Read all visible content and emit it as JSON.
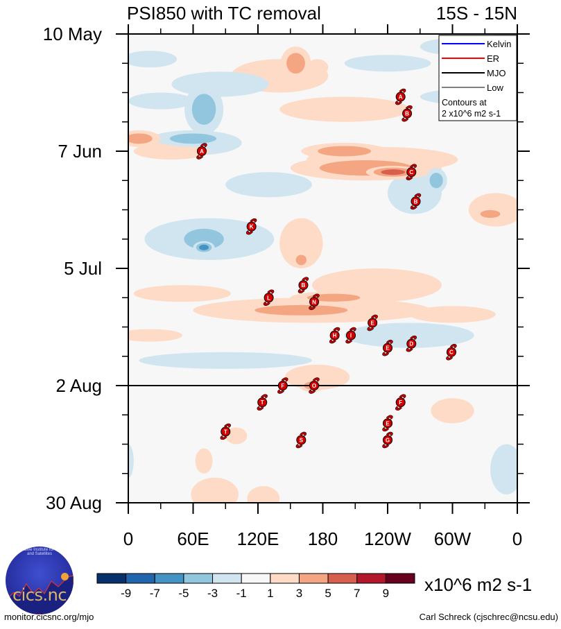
{
  "chart_data": {
    "type": "heatmap",
    "title": "PSI850 with TC removal",
    "subtitle": "15S - 15N",
    "xlabel": "",
    "ylabel": "",
    "x_axis": {
      "range_deg_east": [
        0,
        360
      ],
      "tick_values": [
        0,
        60,
        120,
        180,
        240,
        300,
        360
      ],
      "tick_labels": [
        "0",
        "60E",
        "120E",
        "180",
        "120W",
        "60W",
        "0"
      ],
      "minor_tick_values": [
        30,
        90,
        150,
        210,
        270,
        330
      ]
    },
    "y_axis": {
      "range_days_from_10May": [
        0,
        112
      ],
      "tick_values": [
        0,
        28,
        56,
        84,
        112
      ],
      "tick_labels": [
        "10 May",
        "7 Jun",
        "5 Jul",
        "2 Aug",
        "30 Aug"
      ],
      "minor_tick_interval_days": 7,
      "direction": "time increases downward"
    },
    "current_date_line": {
      "label": "2 Aug",
      "day": 84
    },
    "colorbar": {
      "levels": [
        -9,
        -7,
        -5,
        -3,
        -1,
        1,
        3,
        5,
        7,
        9
      ],
      "colors": [
        "#08306b",
        "#2166ac",
        "#4393c3",
        "#92c5de",
        "#d1e5f0",
        "#f7f7f7",
        "#fddbc7",
        "#f4a582",
        "#d6604d",
        "#b2182b",
        "#67001f"
      ],
      "units": "x10^6 m2 s-1"
    },
    "legend": {
      "position": "top-right",
      "entries": [
        {
          "label": "Kelvin",
          "color": "#0000ff"
        },
        {
          "label": "ER",
          "color": "#ff0000"
        },
        {
          "label": "MJO",
          "color": "#000000"
        },
        {
          "label": "Low",
          "color": "#808080"
        }
      ],
      "note_line1": "Contours at",
      "note_line2": "2 x10^6 m2 s-1"
    },
    "anomaly_features": [
      {
        "lon": 155,
        "day": 7,
        "lon_half": 14,
        "day_half": 4,
        "level": 2
      },
      {
        "lon": 140,
        "day": 10,
        "lon_half": 45,
        "day_half": 4,
        "level": 1
      },
      {
        "lon": 175,
        "day": 8,
        "lon_half": 10,
        "day_half": 2,
        "level": 1
      },
      {
        "lon": 240,
        "day": 7,
        "lon_half": 40,
        "day_half": 2,
        "level": -1
      },
      {
        "lon": 300,
        "day": 3,
        "lon_half": 30,
        "day_half": 2,
        "level": -1
      },
      {
        "lon": 350,
        "day": 3,
        "lon_half": 30,
        "day_half": 3,
        "level": -2
      },
      {
        "lon": 20,
        "day": 6,
        "lon_half": 25,
        "day_half": 2,
        "level": -1
      },
      {
        "lon": 85,
        "day": 12,
        "lon_half": 45,
        "day_half": 3,
        "level": -1
      },
      {
        "lon": 30,
        "day": 16,
        "lon_half": 30,
        "day_half": 2,
        "level": -1
      },
      {
        "lon": 70,
        "day": 18,
        "lon_half": 18,
        "day_half": 6,
        "level": -2
      },
      {
        "lon": 60,
        "day": 25,
        "lon_half": 35,
        "day_half": 2,
        "level": -2
      },
      {
        "lon": 60,
        "day": 26,
        "lon_half": 45,
        "day_half": 3,
        "level": -1
      },
      {
        "lon": 200,
        "day": 18,
        "lon_half": 60,
        "day_half": 3,
        "level": 1
      },
      {
        "lon": 320,
        "day": 15,
        "lon_half": 50,
        "day_half": 2,
        "level": -1
      },
      {
        "lon": 10,
        "day": 25,
        "lon_half": 20,
        "day_half": 2,
        "level": 2
      },
      {
        "lon": 40,
        "day": 28,
        "lon_half": 35,
        "day_half": 2,
        "level": 1
      },
      {
        "lon": 235,
        "day": 30,
        "lon_half": 70,
        "day_half": 3,
        "level": 1
      },
      {
        "lon": 220,
        "day": 32,
        "lon_half": 70,
        "day_half": 3,
        "level": 2
      },
      {
        "lon": 245,
        "day": 33,
        "lon_half": 25,
        "day_half": 1.5,
        "level": 3
      },
      {
        "lon": 200,
        "day": 28,
        "lon_half": 40,
        "day_half": 2,
        "level": 2
      },
      {
        "lon": 265,
        "day": 38,
        "lon_half": 25,
        "day_half": 5,
        "level": -1
      },
      {
        "lon": 285,
        "day": 35,
        "lon_half": 10,
        "day_half": 3,
        "level": -2
      },
      {
        "lon": 130,
        "day": 36,
        "lon_half": 40,
        "day_half": 3,
        "level": -1
      },
      {
        "lon": 340,
        "day": 42,
        "lon_half": 25,
        "day_half": 4,
        "level": 1
      },
      {
        "lon": 335,
        "day": 43,
        "lon_half": 15,
        "day_half": 1.5,
        "level": 2
      },
      {
        "lon": 75,
        "day": 49,
        "lon_half": 60,
        "day_half": 5,
        "level": -1
      },
      {
        "lon": 70,
        "day": 49,
        "lon_half": 30,
        "day_half": 4,
        "level": -2
      },
      {
        "lon": 70,
        "day": 51,
        "lon_half": 10,
        "day_half": 1.5,
        "level": -3
      },
      {
        "lon": 160,
        "day": 50,
        "lon_half": 20,
        "day_half": 6,
        "level": 1
      },
      {
        "lon": 160,
        "day": 54,
        "lon_half": 8,
        "day_half": 2,
        "level": 2
      },
      {
        "lon": 230,
        "day": 60,
        "lon_half": 60,
        "day_half": 4,
        "level": 1
      },
      {
        "lon": 170,
        "day": 66,
        "lon_half": 110,
        "day_half": 3,
        "level": 1
      },
      {
        "lon": 160,
        "day": 66,
        "lon_half": 70,
        "day_half": 2,
        "level": 2
      },
      {
        "lon": 190,
        "day": 63,
        "lon_half": 40,
        "day_half": 1.5,
        "level": 2
      },
      {
        "lon": 50,
        "day": 62,
        "lon_half": 45,
        "day_half": 2,
        "level": 1
      },
      {
        "lon": 300,
        "day": 67,
        "lon_half": 40,
        "day_half": 2,
        "level": 1
      },
      {
        "lon": 20,
        "day": 72,
        "lon_half": 30,
        "day_half": 1.5,
        "level": 1
      },
      {
        "lon": 260,
        "day": 72,
        "lon_half": 60,
        "day_half": 3,
        "level": -1
      },
      {
        "lon": 90,
        "day": 78,
        "lon_half": 80,
        "day_half": 2,
        "level": -1
      },
      {
        "lon": 175,
        "day": 82,
        "lon_half": 30,
        "day_half": 3,
        "level": 1
      },
      {
        "lon": 170,
        "day": 84,
        "lon_half": 12,
        "day_half": 1.5,
        "level": 2
      },
      {
        "lon": 300,
        "day": 90,
        "lon_half": 20,
        "day_half": 3,
        "level": 1
      },
      {
        "lon": 100,
        "day": 96,
        "lon_half": 10,
        "day_half": 2,
        "level": 1
      },
      {
        "lon": 70,
        "day": 102,
        "lon_half": 8,
        "day_half": 3,
        "level": 1
      },
      {
        "lon": 350,
        "day": 104,
        "lon_half": 15,
        "day_half": 6,
        "level": -1
      },
      {
        "lon": 80,
        "day": 110,
        "lon_half": 22,
        "day_half": 4,
        "level": 1
      },
      {
        "lon": 125,
        "day": 111,
        "lon_half": 15,
        "day_half": 3,
        "level": 1
      },
      {
        "lon": 0,
        "day": 102,
        "lon_half": 5,
        "day_half": 4,
        "level": -1
      }
    ],
    "tropical_cyclones": [
      {
        "label": "A",
        "lon": 252,
        "day": 15
      },
      {
        "label": "B",
        "lon": 258,
        "day": 19
      },
      {
        "label": "A",
        "lon": 68,
        "day": 28
      },
      {
        "label": "C",
        "lon": 262,
        "day": 33
      },
      {
        "label": "B",
        "lon": 266,
        "day": 40
      },
      {
        "lon": 114,
        "day": 46,
        "label": "K"
      },
      {
        "label": "L",
        "lon": 130,
        "day": 63
      },
      {
        "label": "B",
        "lon": 162,
        "day": 60
      },
      {
        "label": "N",
        "lon": 172,
        "day": 64
      },
      {
        "label": "E",
        "lon": 226,
        "day": 69
      },
      {
        "label": "H",
        "lon": 191,
        "day": 72
      },
      {
        "label": "I",
        "lon": 206,
        "day": 72
      },
      {
        "label": "E",
        "lon": 240,
        "day": 75
      },
      {
        "label": "D",
        "lon": 262,
        "day": 74
      },
      {
        "label": "C",
        "lon": 299,
        "day": 76
      },
      {
        "label": "F",
        "lon": 252,
        "day": 88
      },
      {
        "label": "T",
        "lon": 124,
        "day": 88
      },
      {
        "label": "T",
        "lon": 90,
        "day": 95
      },
      {
        "label": "E",
        "lon": 240,
        "day": 93
      },
      {
        "label": "G",
        "lon": 240,
        "day": 97
      },
      {
        "label": "S",
        "lon": 160,
        "day": 97
      },
      {
        "label": "F",
        "lon": 143,
        "day": 84
      },
      {
        "label": "O",
        "lon": 172,
        "day": 84
      }
    ]
  },
  "footer": {
    "logo_text": "cics.nc",
    "logo_arc_text": "Cooperative Institute for Climate and Satellites",
    "left_url": "monitor.cicsnc.org/mjo",
    "right_credit": "Carl Schreck (cjschrec@ncsu.edu)"
  }
}
